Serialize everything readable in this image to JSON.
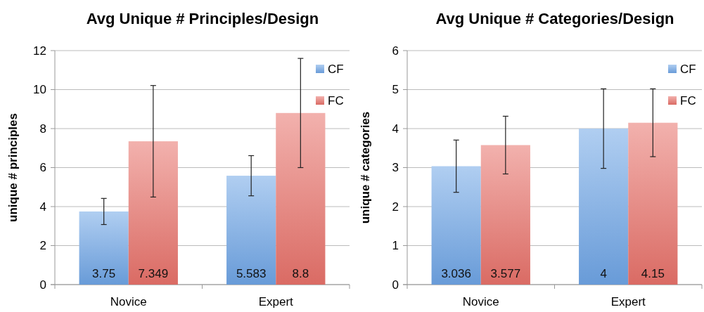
{
  "chart_data": [
    {
      "type": "bar",
      "title": "Avg Unique # Principles/Design",
      "ylabel": "unique # principles",
      "categories": [
        "Novice",
        "Expert"
      ],
      "ylim": [
        0,
        12
      ],
      "yticks": [
        0,
        2,
        4,
        6,
        8,
        10,
        12
      ],
      "grid": "y",
      "legend": "top right",
      "data_labels": true,
      "series": [
        {
          "name": "CF",
          "color": "#6fa5e6",
          "values": [
            3.75,
            5.583
          ],
          "errors": [
            0.67,
            1.03
          ]
        },
        {
          "name": "FC",
          "color": "#e8726a",
          "values": [
            7.349,
            8.8
          ],
          "errors": [
            2.86,
            2.8
          ]
        }
      ]
    },
    {
      "type": "bar",
      "title": "Avg Unique # Categories/Design",
      "ylabel": "unique # categories",
      "categories": [
        "Novice",
        "Expert"
      ],
      "ylim": [
        0,
        6
      ],
      "yticks": [
        0,
        1,
        2,
        3,
        4,
        5,
        6
      ],
      "grid": "y",
      "legend": "top right",
      "data_labels": true,
      "series": [
        {
          "name": "CF",
          "color": "#6fa5e6",
          "values": [
            3.036,
            4
          ],
          "errors": [
            0.67,
            1.02
          ]
        },
        {
          "name": "FC",
          "color": "#e8726a",
          "values": [
            3.577,
            4.15
          ],
          "errors": [
            0.74,
            0.87
          ]
        }
      ]
    }
  ]
}
